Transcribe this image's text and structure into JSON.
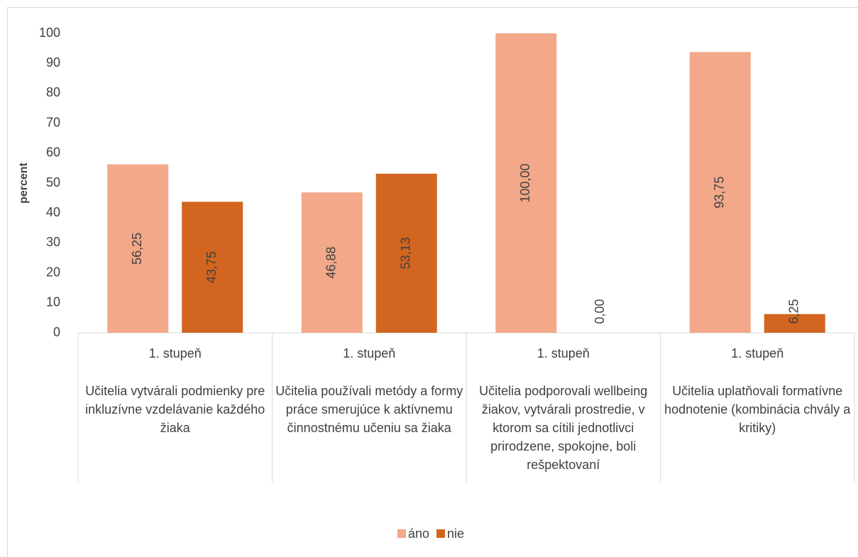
{
  "chart_data": {
    "type": "bar",
    "y_label": "percent",
    "categories": [
      "1. stupeň",
      "1. stupeň",
      "1. stupeň",
      "1. stupeň"
    ],
    "groups": [
      "Učitelia vytvárali podmienky pre inkluzívne vzdelávanie každého žiaka",
      "Učitelia používali metódy a formy práce smerujúce k aktívnemu činnostnému učeniu sa žiaka",
      "Učitelia podporovali wellbeing žiakov, vytvárali prostredie, v ktorom sa cítili jednotlivci prirodzene, spokojne, boli rešpektovaní",
      "Učitelia uplatňovali formatívne hodnotenie (kombinácia chvály a kritiky)"
    ],
    "series": [
      {
        "name": "áno",
        "color": "#f2a889",
        "values": [
          56.25,
          46.88,
          100,
          93.75
        ],
        "value_labels": [
          "56,25",
          "46,88",
          "100,00",
          "93,75"
        ]
      },
      {
        "name": "nie",
        "color": "#d2651f",
        "values": [
          43.75,
          53.13,
          0,
          6.25
        ],
        "value_labels": [
          "43,75",
          "53,13",
          "0,00",
          "6,25"
        ]
      }
    ],
    "ylim": [
      0,
      100
    ],
    "yticks": [
      0,
      10,
      20,
      30,
      40,
      50,
      60,
      70,
      80,
      90,
      100
    ],
    "legend": "bottom"
  }
}
